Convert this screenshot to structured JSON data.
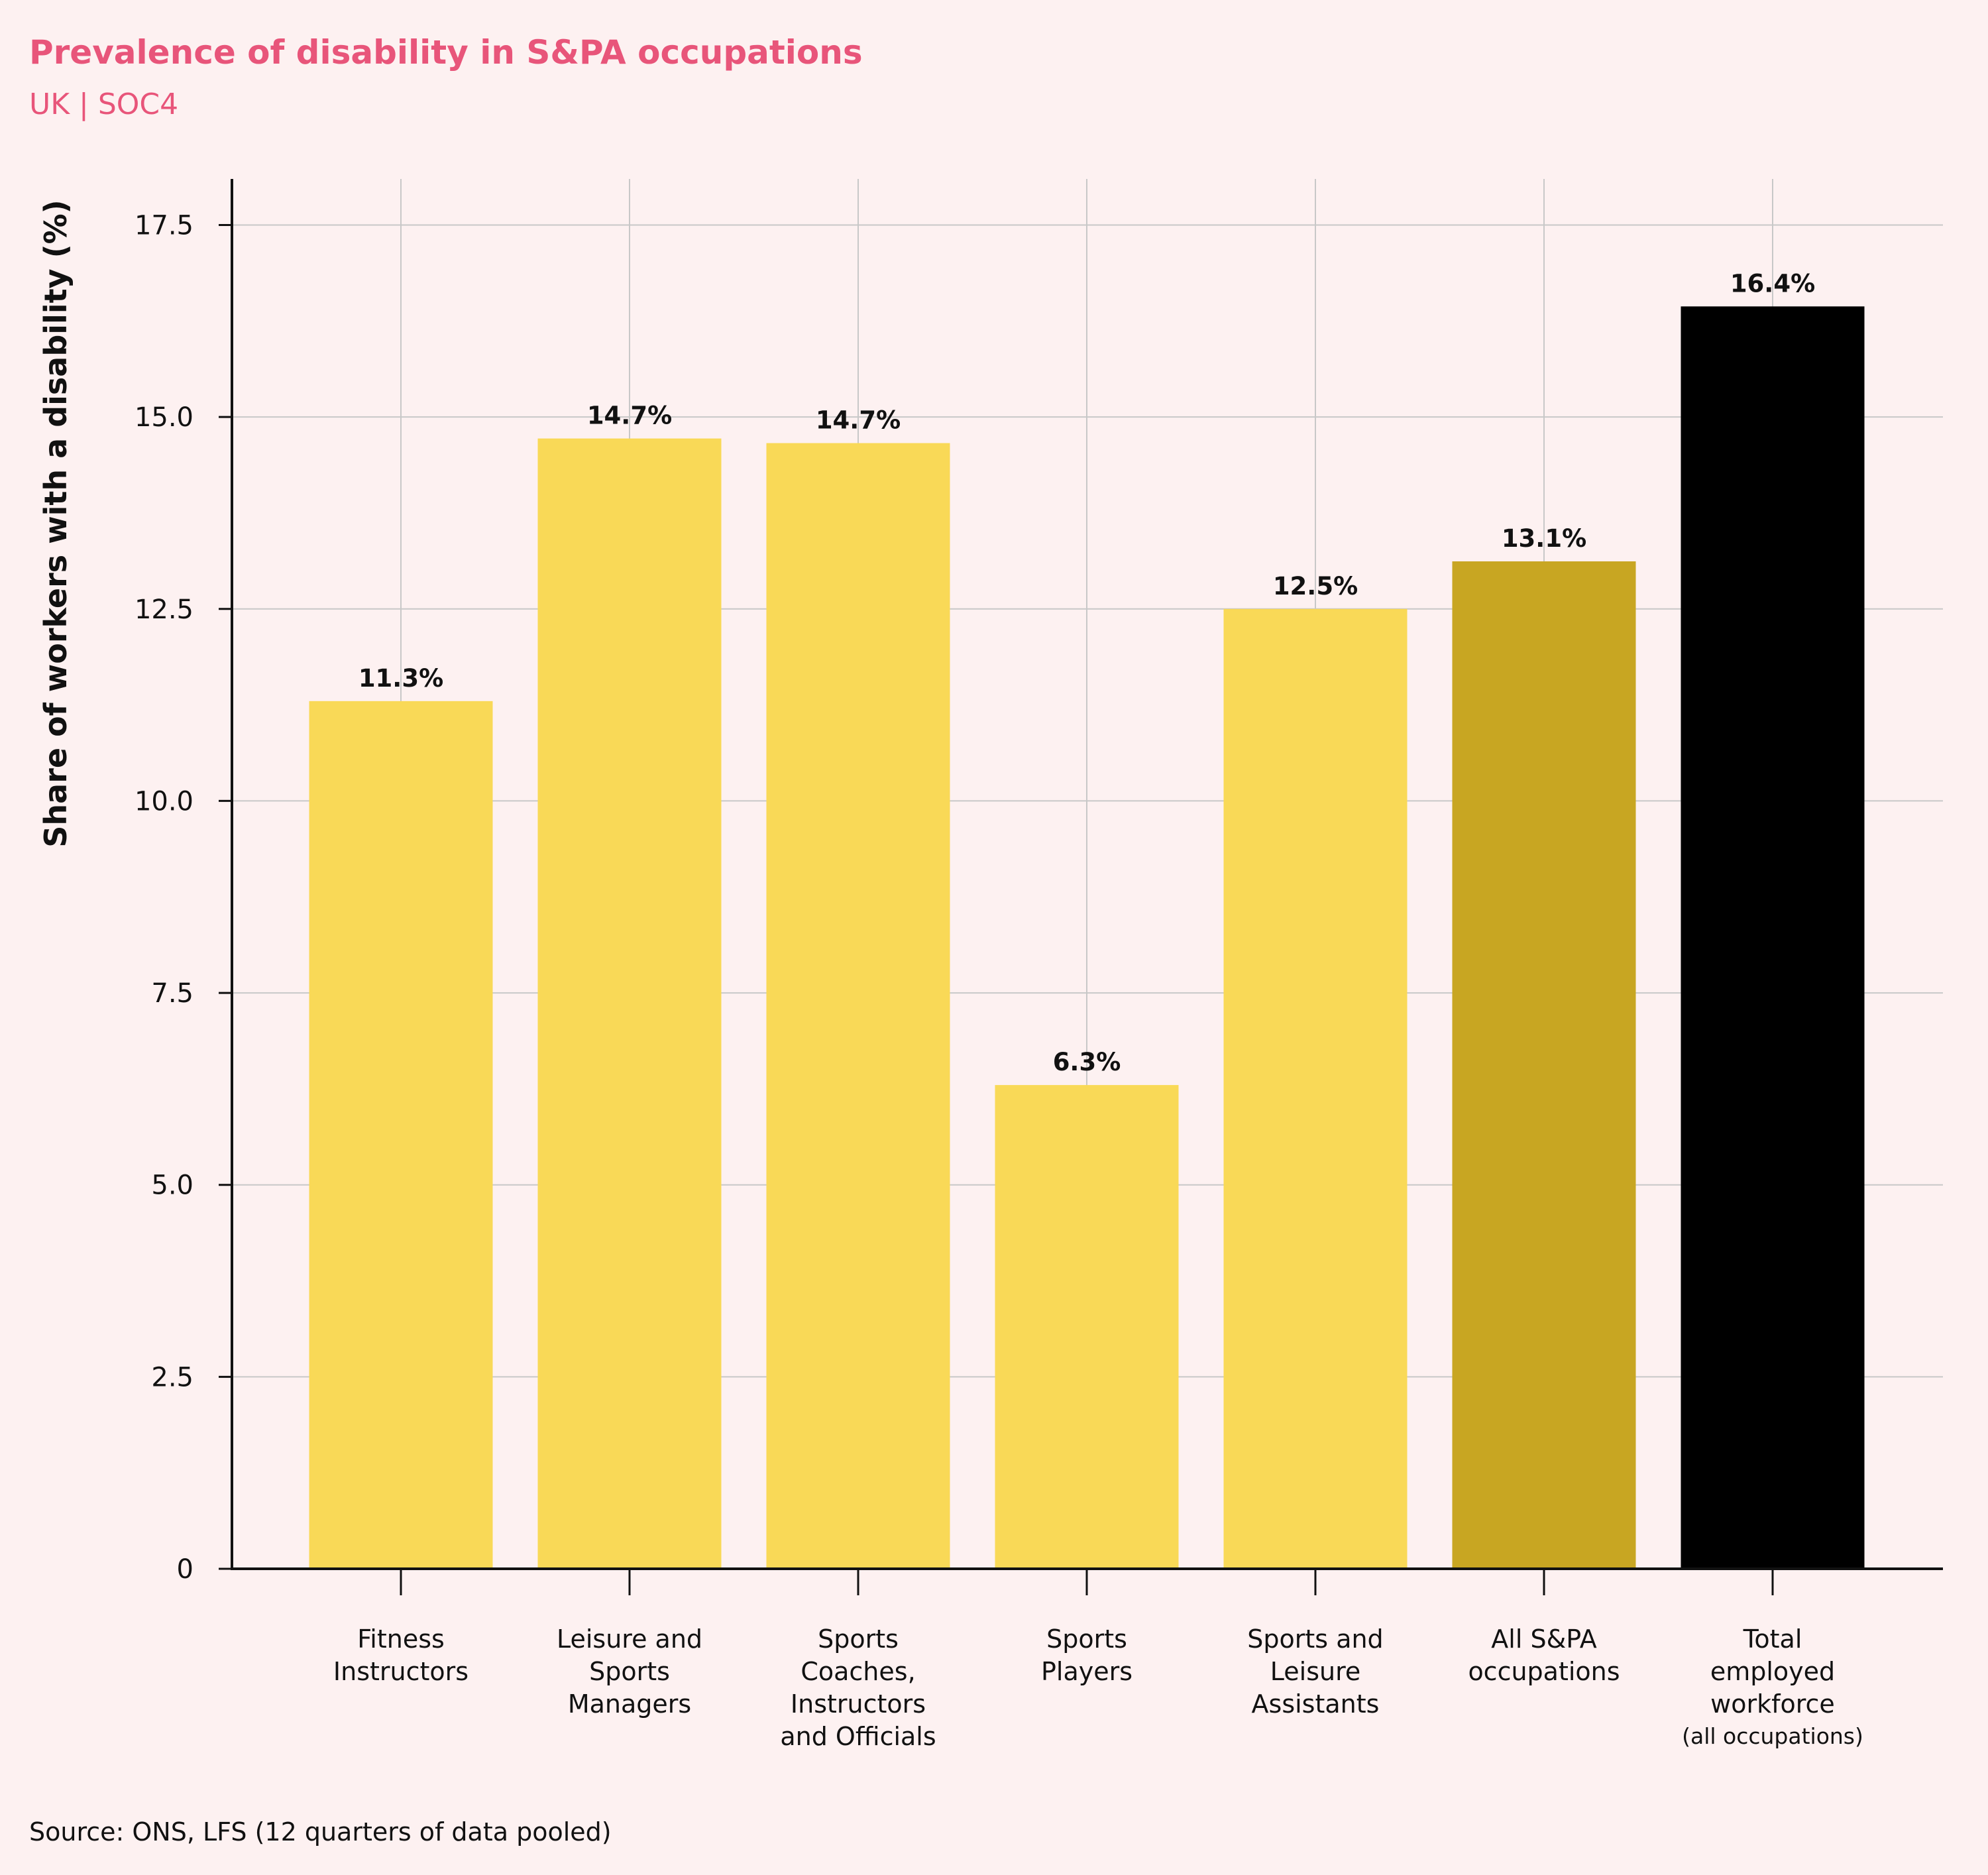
{
  "header": {
    "title": "Prevalence of disability in S&PA occupations",
    "subtitle": "UK | SOC4"
  },
  "footer": {
    "source": "Source: ONS, LFS (12 quarters of data pooled)"
  },
  "colors": {
    "background": "#fdf1f1",
    "title": "#e8557a",
    "bar_default": "#f9d957",
    "bar_all_spa": "#c8a622",
    "bar_total": "#000000",
    "grid": "#c8c8c8",
    "axis": "#111111"
  },
  "chart_data": {
    "type": "bar",
    "title": "Prevalence of disability in S&PA occupations",
    "subtitle": "UK | SOC4",
    "xlabel": "",
    "ylabel": "Share of workers with a disability (%)",
    "ylim": [
      0,
      18.1
    ],
    "grid": true,
    "yticks": [
      0,
      2.5,
      5.0,
      7.5,
      10.0,
      12.5,
      15.0,
      17.5
    ],
    "ytick_labels": [
      "0",
      "2.5",
      "5.0",
      "7.5",
      "10.0",
      "12.5",
      "15.0",
      "17.5"
    ],
    "categories": [
      {
        "lines": [
          "Fitness",
          "Instructors"
        ]
      },
      {
        "lines": [
          "Leisure and",
          "Sports",
          "Managers"
        ]
      },
      {
        "lines": [
          "Sports",
          "Coaches,",
          "Instructors",
          "and Officials"
        ]
      },
      {
        "lines": [
          "Sports",
          "Players"
        ]
      },
      {
        "lines": [
          "Sports and",
          "Leisure",
          "Assistants"
        ]
      },
      {
        "lines": [
          "All S&PA",
          "occupations"
        ]
      },
      {
        "lines": [
          "Total",
          "employed",
          "workforce"
        ],
        "note": "(all occupations)"
      }
    ],
    "values": [
      11.3,
      14.72,
      14.66,
      6.3,
      12.5,
      13.12,
      16.44
    ],
    "value_labels": [
      "11.3%",
      "14.7%",
      "14.7%",
      "6.3%",
      "12.5%",
      "13.1%",
      "16.4%"
    ],
    "bar_color_keys": [
      "bar_default",
      "bar_default",
      "bar_default",
      "bar_default",
      "bar_default",
      "bar_all_spa",
      "bar_total"
    ]
  }
}
